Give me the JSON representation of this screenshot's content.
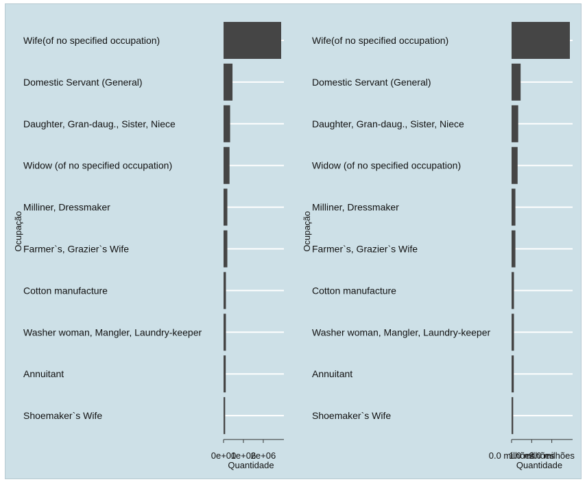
{
  "chart_data": [
    {
      "type": "bar",
      "orientation": "horizontal",
      "categories": [
        "Wife(of no specified occupation)",
        "Domestic Servant (General)",
        "Daughter, Gran-daug., Sister, Niece",
        "Widow (of no specified occupation)",
        "Milliner, Dressmaker",
        "Farmer`s, Grazier`s Wife",
        "Cotton manufacture",
        "Washer woman, Mangler, Laundry-keeper",
        "Annuitant",
        "Shoemaker`s Wife"
      ],
      "values": [
        2900000,
        450000,
        330000,
        300000,
        190000,
        190000,
        120000,
        120000,
        110000,
        80000
      ],
      "xlabel": "Quantidade",
      "ylabel": "Ocupação",
      "xlim": [
        0,
        2900000
      ],
      "xtick_labels": [
        "0e+00",
        "1e+06",
        "2e+06"
      ],
      "grid": true,
      "legend": "none"
    },
    {
      "type": "bar",
      "orientation": "horizontal",
      "categories": [
        "Wife(of no specified occupation)",
        "Domestic Servant (General)",
        "Daughter, Gran-daug., Sister, Niece",
        "Widow (of no specified occupation)",
        "Milliner, Dressmaker",
        "Farmer`s, Grazier`s Wife",
        "Cotton manufacture",
        "Washer woman, Mangler, Laundry-keeper",
        "Annuitant",
        "Shoemaker`s Wife"
      ],
      "values": [
        2900000,
        450000,
        330000,
        300000,
        190000,
        190000,
        120000,
        120000,
        110000,
        80000
      ],
      "xlabel": "Quantidade",
      "ylabel": "Ocupação",
      "xlim": [
        0,
        2900000
      ],
      "xtick_labels": [
        "0.0 milhões",
        "1.0 milhões",
        "2.0 milhões"
      ],
      "grid": true,
      "legend": "none"
    }
  ],
  "colors": {
    "background": "#cde0e7",
    "bar": "#454545",
    "grid": "#ffffff",
    "text": "#111111"
  }
}
